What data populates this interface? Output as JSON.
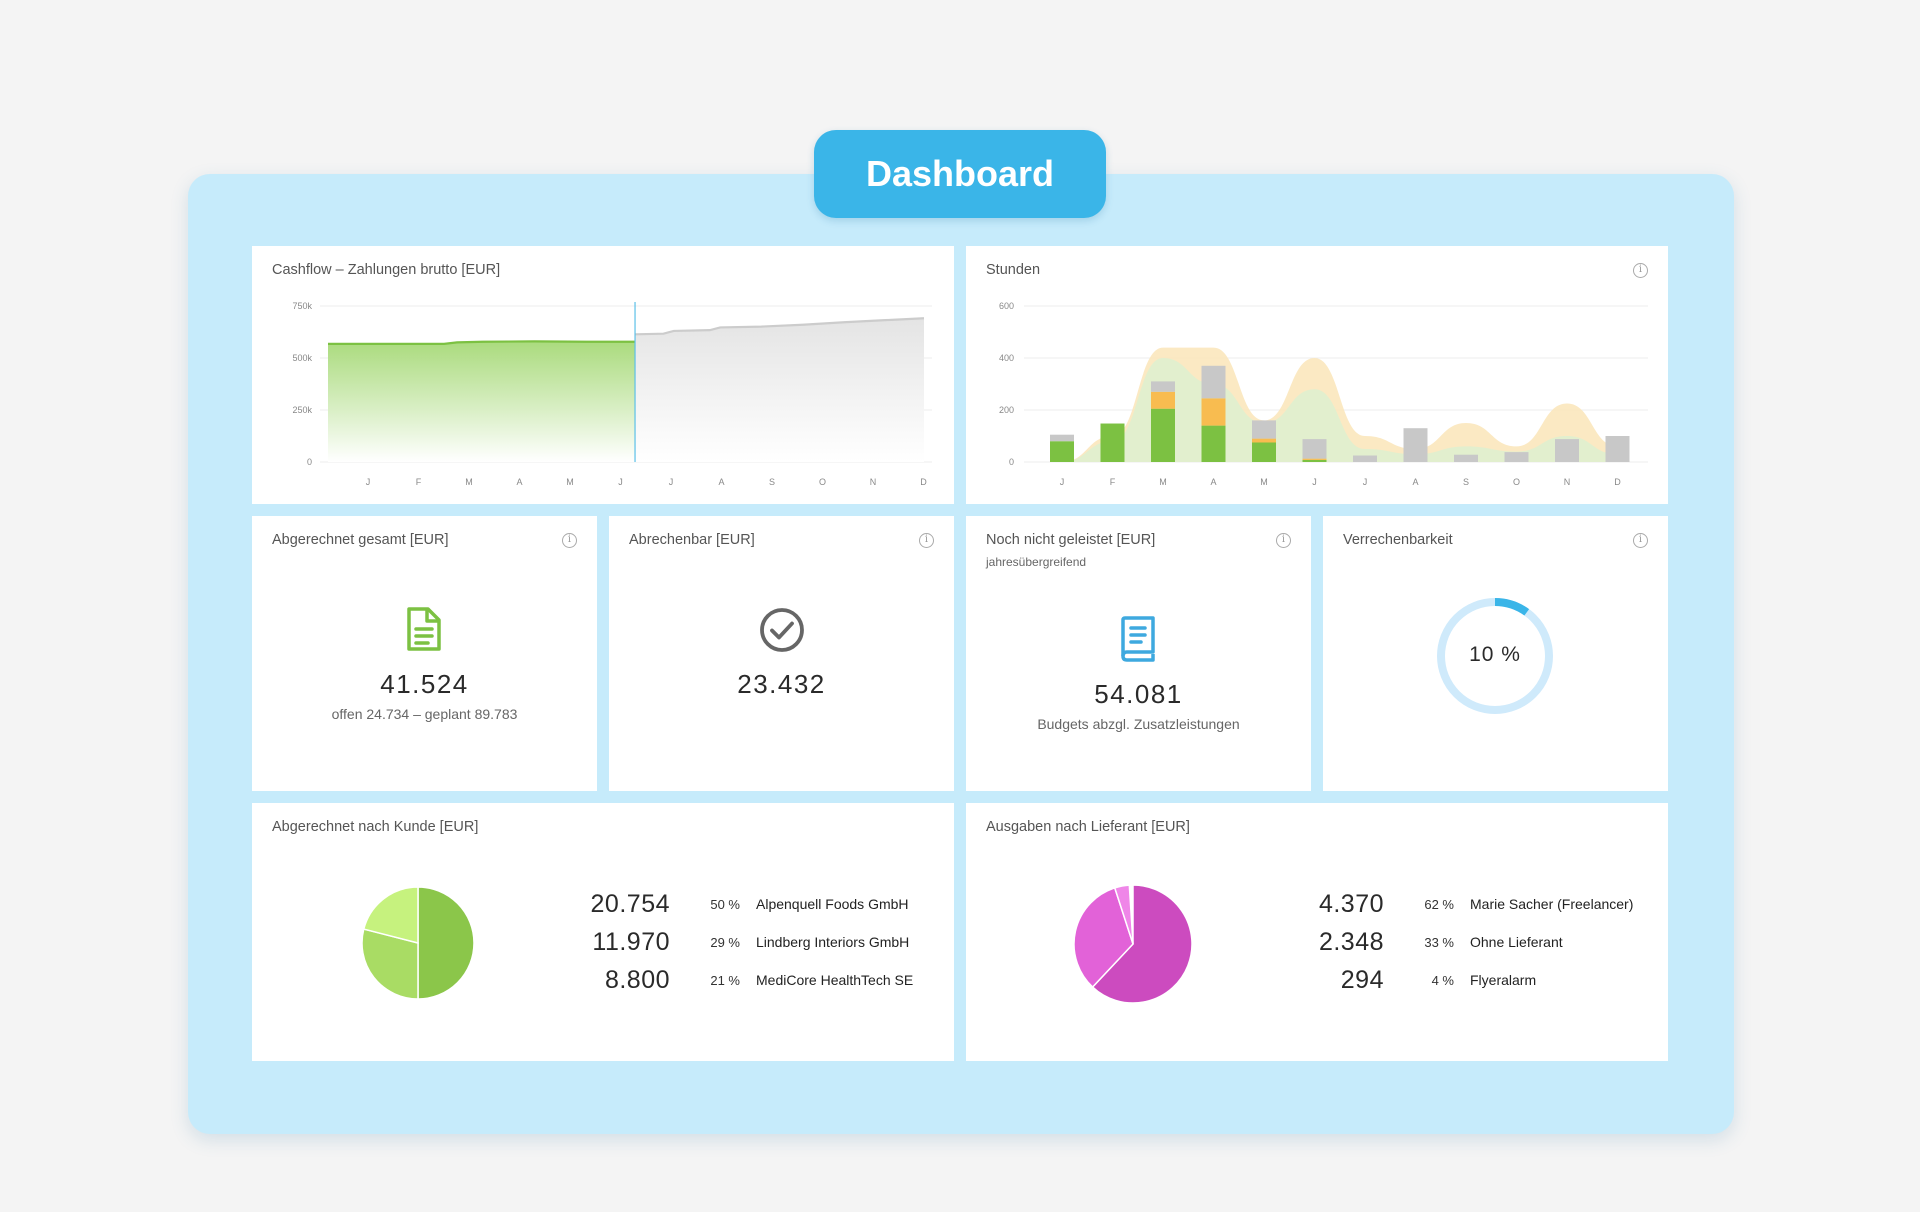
{
  "header": {
    "title": "Dashboard"
  },
  "cashflow": {
    "title": "Cashflow – Zahlungen brutto [EUR]",
    "chart_data": {
      "type": "area",
      "title": "Cashflow – Zahlungen brutto [EUR]",
      "y_ticks": [
        "750k",
        "500k",
        "250k",
        "0"
      ],
      "ylim": [
        0,
        750000
      ],
      "x_ticks": [
        "J",
        "F",
        "M",
        "A",
        "M",
        "J",
        "J",
        "A",
        "S",
        "O",
        "N",
        "D"
      ],
      "series": [
        {
          "segment": "actual",
          "color": "#7cc142",
          "x": [
            0,
            2.25,
            2.5,
            3,
            4,
            5,
            5.95
          ],
          "y": [
            568000,
            568000,
            575000,
            578000,
            580000,
            578000,
            578000
          ]
        },
        {
          "segment": "forecast",
          "color": "#cccccc",
          "x": [
            5.95,
            6.5,
            6.7,
            7.4,
            7.6,
            8.4,
            9.2,
            10,
            10.8,
            11.55
          ],
          "y": [
            614000,
            617000,
            630000,
            634000,
            647000,
            651000,
            660000,
            672000,
            682000,
            691000
          ]
        }
      ],
      "today_marker_x": 5.95
    }
  },
  "stunden": {
    "title": "Stunden",
    "chart_data": {
      "type": "bar",
      "title": "Stunden",
      "categories": [
        "J",
        "F",
        "M",
        "A",
        "M",
        "J",
        "J",
        "A",
        "S",
        "O",
        "N",
        "D"
      ],
      "y_ticks": [
        "600",
        "400",
        "200",
        "0"
      ],
      "ylim": [
        0,
        600
      ],
      "bar_series": [
        {
          "color": "#7cc142",
          "values": [
            80,
            148,
            205,
            140,
            75,
            8,
            0,
            0,
            0,
            0,
            0,
            0
          ]
        },
        {
          "color": "#f8bc50",
          "values": [
            0,
            0,
            65,
            105,
            15,
            5,
            0,
            0,
            0,
            0,
            0,
            0
          ]
        },
        {
          "color": "#c8c8c8",
          "values": [
            25,
            0,
            40,
            125,
            70,
            75,
            25,
            130,
            28,
            38,
            88,
            100
          ]
        }
      ],
      "area_series": [
        {
          "color": "#fbe7bd",
          "values": [
            0,
            100,
            440,
            440,
            160,
            400,
            100,
            50,
            150,
            60,
            225,
            60
          ]
        },
        {
          "color": "#dff0cf",
          "values": [
            0,
            80,
            400,
            300,
            150,
            280,
            50,
            30,
            60,
            40,
            100,
            30
          ]
        }
      ]
    }
  },
  "abgerechnet": {
    "title": "Abgerechnet gesamt [EUR]",
    "value": "41.524",
    "sub": "offen 24.734 – geplant 89.783"
  },
  "abrechenbar": {
    "title": "Abrechenbar [EUR]",
    "value": "23.432"
  },
  "nicht_geleistet": {
    "title": "Noch nicht geleistet [EUR]",
    "subtitle": "jahresübergreifend",
    "value": "54.081",
    "sub": "Budgets abzgl. Zusatzleistungen"
  },
  "verrechenbarkeit": {
    "title": "Verrechenbarkeit",
    "value": "10 %",
    "chart_data": {
      "type": "pie",
      "percent": 10,
      "color": "#3ab5e8",
      "track_color": "#cfeafb"
    }
  },
  "kunde": {
    "title": "Abgerechnet nach Kunde [EUR]",
    "chart_data": {
      "type": "pie",
      "title": "Abgerechnet nach Kunde [EUR]",
      "slices": [
        {
          "value": "20.754",
          "pct": "50 %",
          "name": "Alpenquell Foods GmbH",
          "share": 50,
          "color": "#8bc64a"
        },
        {
          "value": "11.970",
          "pct": "29 %",
          "name": "Lindberg Interiors GmbH",
          "share": 29,
          "color": "#a9dc64"
        },
        {
          "value": "8.800",
          "pct": "21 %",
          "name": "MediCore HealthTech SE",
          "share": 21,
          "color": "#c6f27e"
        }
      ]
    }
  },
  "lieferant": {
    "title": "Ausgaben nach Lieferant [EUR]",
    "chart_data": {
      "type": "pie",
      "title": "Ausgaben nach Lieferant [EUR]",
      "slices": [
        {
          "value": "4.370",
          "pct": "62 %",
          "name": "Marie Sacher (Freelancer)",
          "share": 62,
          "color": "#cc4bbf"
        },
        {
          "value": "2.348",
          "pct": "33 %",
          "name": "Ohne Lieferant",
          "share": 33,
          "color": "#e262d8"
        },
        {
          "value": "294",
          "pct": "4 %",
          "name": "Flyeralarm",
          "share": 4,
          "color": "#ef86e8"
        }
      ]
    }
  }
}
